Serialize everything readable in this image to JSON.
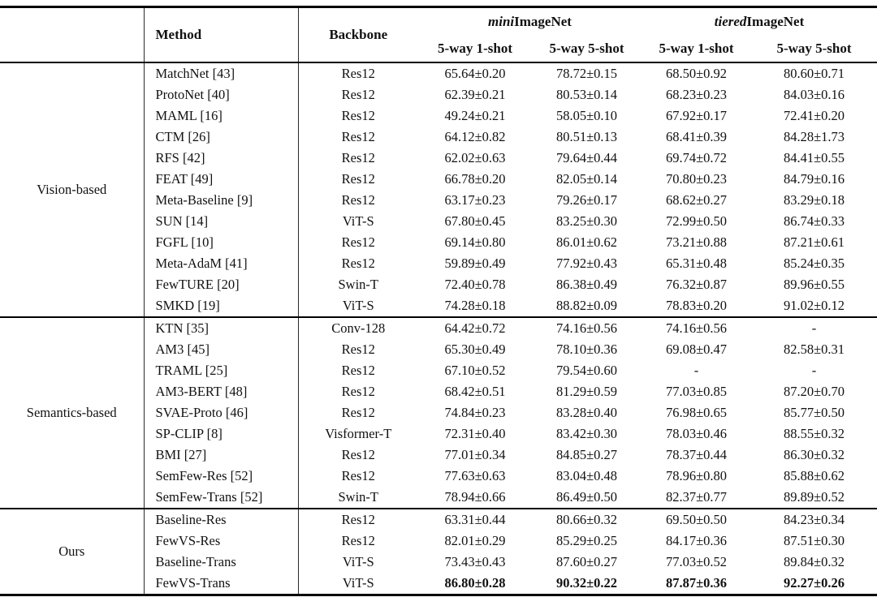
{
  "table": {
    "header": {
      "method": "Method",
      "backbone": "Backbone",
      "mini_italic": "mini",
      "mini_rest": "ImageNet",
      "tiered_italic": "tiered",
      "tiered_rest": "ImageNet",
      "shots": [
        "5-way 1-shot",
        "5-way 5-shot",
        "5-way 1-shot",
        "5-way 5-shot"
      ]
    },
    "sections": [
      {
        "label": "Vision-based",
        "rows": [
          {
            "method": "MatchNet [43]",
            "backbone": "Res12",
            "values": [
              "65.64±0.20",
              "78.72±0.15",
              "68.50±0.92",
              "80.60±0.71"
            ]
          },
          {
            "method": "ProtoNet [40]",
            "backbone": "Res12",
            "values": [
              "62.39±0.21",
              "80.53±0.14",
              "68.23±0.23",
              "84.03±0.16"
            ]
          },
          {
            "method": "MAML [16]",
            "backbone": "Res12",
            "values": [
              "49.24±0.21",
              "58.05±0.10",
              "67.92±0.17",
              "72.41±0.20"
            ]
          },
          {
            "method": "CTM [26]",
            "backbone": "Res12",
            "values": [
              "64.12±0.82",
              "80.51±0.13",
              "68.41±0.39",
              "84.28±1.73"
            ]
          },
          {
            "method": "RFS [42]",
            "backbone": "Res12",
            "values": [
              "62.02±0.63",
              "79.64±0.44",
              "69.74±0.72",
              "84.41±0.55"
            ]
          },
          {
            "method": "FEAT [49]",
            "backbone": "Res12",
            "values": [
              "66.78±0.20",
              "82.05±0.14",
              "70.80±0.23",
              "84.79±0.16"
            ]
          },
          {
            "method": "Meta-Baseline [9]",
            "backbone": "Res12",
            "values": [
              "63.17±0.23",
              "79.26±0.17",
              "68.62±0.27",
              "83.29±0.18"
            ]
          },
          {
            "method": "SUN [14]",
            "backbone": "ViT-S",
            "values": [
              "67.80±0.45",
              "83.25±0.30",
              "72.99±0.50",
              "86.74±0.33"
            ]
          },
          {
            "method": "FGFL [10]",
            "backbone": "Res12",
            "values": [
              "69.14±0.80",
              "86.01±0.62",
              "73.21±0.88",
              "87.21±0.61"
            ]
          },
          {
            "method": "Meta-AdaM [41]",
            "backbone": "Res12",
            "values": [
              "59.89±0.49",
              "77.92±0.43",
              "65.31±0.48",
              "85.24±0.35"
            ]
          },
          {
            "method": "FewTURE [20]",
            "backbone": "Swin-T",
            "values": [
              "72.40±0.78",
              "86.38±0.49",
              "76.32±0.87",
              "89.96±0.55"
            ]
          },
          {
            "method": "SMKD [19]",
            "backbone": "ViT-S",
            "values": [
              "74.28±0.18",
              "88.82±0.09",
              "78.83±0.20",
              "91.02±0.12"
            ]
          }
        ]
      },
      {
        "label": "Semantics-based",
        "rows": [
          {
            "method": "KTN [35]",
            "backbone": "Conv-128",
            "values": [
              "64.42±0.72",
              "74.16±0.56",
              "74.16±0.56",
              "-"
            ]
          },
          {
            "method": "AM3 [45]",
            "backbone": "Res12",
            "values": [
              "65.30±0.49",
              "78.10±0.36",
              "69.08±0.47",
              "82.58±0.31"
            ]
          },
          {
            "method": "TRAML [25]",
            "backbone": "Res12",
            "values": [
              "67.10±0.52",
              "79.54±0.60",
              "-",
              "-"
            ]
          },
          {
            "method": "AM3-BERT [48]",
            "backbone": "Res12",
            "values": [
              "68.42±0.51",
              "81.29±0.59",
              "77.03±0.85",
              "87.20±0.70"
            ]
          },
          {
            "method": "SVAE-Proto [46]",
            "backbone": "Res12",
            "values": [
              "74.84±0.23",
              "83.28±0.40",
              "76.98±0.65",
              "85.77±0.50"
            ]
          },
          {
            "method": "SP-CLIP [8]",
            "backbone": "Visformer-T",
            "values": [
              "72.31±0.40",
              "83.42±0.30",
              "78.03±0.46",
              "88.55±0.32"
            ]
          },
          {
            "method": "BMI [27]",
            "backbone": "Res12",
            "values": [
              "77.01±0.34",
              "84.85±0.27",
              "78.37±0.44",
              "86.30±0.32"
            ]
          },
          {
            "method": "SemFew-Res [52]",
            "backbone": "Res12",
            "values": [
              "77.63±0.63",
              "83.04±0.48",
              "78.96±0.80",
              "85.88±0.62"
            ]
          },
          {
            "method": "SemFew-Trans [52]",
            "backbone": "Swin-T",
            "values": [
              "78.94±0.66",
              "86.49±0.50",
              "82.37±0.77",
              "89.89±0.52"
            ]
          }
        ]
      },
      {
        "label": "Ours",
        "rows": [
          {
            "method": "Baseline-Res",
            "backbone": "Res12",
            "values": [
              "63.31±0.44",
              "80.66±0.32",
              "69.50±0.50",
              "84.23±0.34"
            ]
          },
          {
            "method": "FewVS-Res",
            "backbone": "Res12",
            "values": [
              "82.01±0.29",
              "85.29±0.25",
              "84.17±0.36",
              "87.51±0.30"
            ]
          },
          {
            "method": "Baseline-Trans",
            "backbone": "ViT-S",
            "values": [
              "73.43±0.43",
              "87.60±0.27",
              "77.03±0.52",
              "89.84±0.32"
            ]
          },
          {
            "method": "FewVS-Trans",
            "backbone": "ViT-S",
            "values": [
              "86.80±0.28",
              "90.32±0.22",
              "87.87±0.36",
              "92.27±0.26"
            ],
            "bold": true
          }
        ]
      }
    ]
  }
}
